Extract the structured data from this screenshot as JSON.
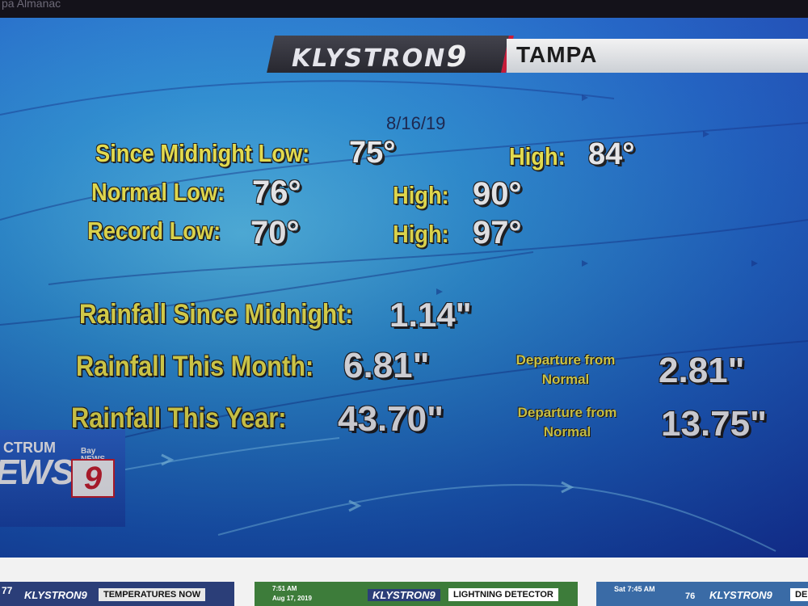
{
  "browser": {
    "tab_title": "pa Almanac"
  },
  "broadcast": {
    "logo": "KLYSTRON",
    "logo_number": "9",
    "city": "TAMPA",
    "date": "8/16/19",
    "temps": {
      "since_midnight_low_label": "Since Midnight Low:",
      "since_midnight_low": "75°",
      "since_midnight_high_label": "High:",
      "since_midnight_high": "84°",
      "normal_low_label": "Normal Low:",
      "normal_low": "76°",
      "normal_high_label": "High:",
      "normal_high": "90°",
      "record_low_label": "Record Low:",
      "record_low": "70°",
      "record_high_label": "High:",
      "record_high": "97°"
    },
    "rain": {
      "since_midnight_label": "Rainfall Since Midnight:",
      "since_midnight": "1.14\"",
      "month_label": "Rainfall This Month:",
      "month": "6.81\"",
      "month_departure_label_1": "Departure from",
      "month_departure_label_2": "Normal",
      "month_departure": "2.81\"",
      "year_label": "Rainfall This Year:",
      "year": "43.70\"",
      "year_departure_label_1": "Departure from",
      "year_departure_label_2": "Normal",
      "year_departure": "13.75\""
    },
    "channel_logo": {
      "line1": "CTRUM",
      "line2": "EWS",
      "bay": "Bay",
      "news": "NEWS",
      "nine": "9"
    }
  },
  "thumbnails": [
    {
      "num": "77",
      "logo": "KLYSTRON9",
      "label": "TEMPERATURES NOW"
    },
    {
      "time": "7:51 AM",
      "date": "Aug 17, 2019",
      "logo": "KLYSTRON9",
      "label": "LIGHTNING DETECTOR"
    },
    {
      "time": "Sat 7:45 AM",
      "num": "76",
      "logo": "KLYSTRON9",
      "label": "DE"
    }
  ],
  "colors": {
    "label_yellow": "#f1e84a",
    "value_white": "#f5f5f5",
    "brand_red": "#c8102e"
  }
}
